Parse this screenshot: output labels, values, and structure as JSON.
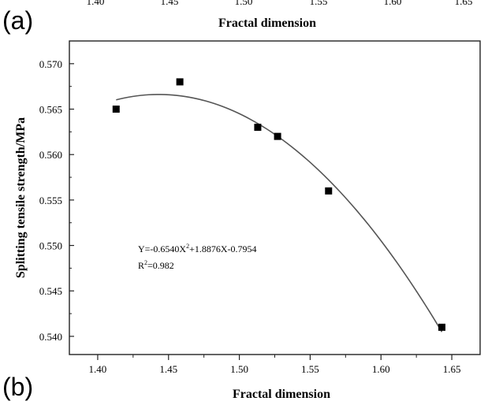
{
  "top_crop": {
    "panel_letter": "(a)",
    "xlabel": "Fractal dimension",
    "tick_labels": [
      "1.40",
      "1.45",
      "1.50",
      "1.55",
      "1.60",
      "1.65"
    ]
  },
  "panel_letter": "(b)",
  "chart_data": {
    "type": "scatter",
    "title": "",
    "xlabel": "Fractal dimension",
    "ylabel": "Splitting tensile strength/MPa",
    "xlim": [
      1.38,
      1.67
    ],
    "ylim": [
      0.538,
      0.5725
    ],
    "xticks": [
      1.4,
      1.45,
      1.5,
      1.55,
      1.6,
      1.65
    ],
    "xtick_labels": [
      "1.40",
      "1.45",
      "1.50",
      "1.55",
      "1.60",
      "1.65"
    ],
    "yticks": [
      0.54,
      0.545,
      0.55,
      0.555,
      0.56,
      0.565,
      0.57
    ],
    "ytick_labels": [
      "0.540",
      "0.545",
      "0.550",
      "0.555",
      "0.560",
      "0.565",
      "0.570"
    ],
    "grid": false,
    "series": [
      {
        "points": [
          {
            "x": 1.413,
            "y": 0.565
          },
          {
            "x": 1.458,
            "y": 0.568
          },
          {
            "x": 1.513,
            "y": 0.563
          },
          {
            "x": 1.527,
            "y": 0.562
          },
          {
            "x": 1.563,
            "y": 0.556
          },
          {
            "x": 1.643,
            "y": 0.541
          }
        ]
      }
    ],
    "fit": {
      "coefficients": [
        -0.654,
        1.8876,
        -0.7954
      ],
      "x_range": [
        1.413,
        1.643
      ]
    },
    "annotation": {
      "equation_prefix": "Y=-0.6540X",
      "equation_exp": "2",
      "equation_suffix": "+1.8876X-0.7954",
      "r2_prefix": "R",
      "r2_exp": "2",
      "r2_suffix": "=0.982"
    }
  }
}
